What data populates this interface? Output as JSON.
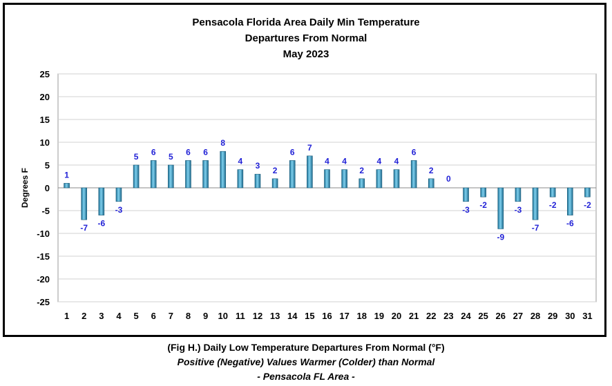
{
  "chart_data": {
    "type": "bar",
    "title": "Pensacola Florida Area Daily Min Temperature",
    "subtitle_lines": [
      "Departures From Normal",
      "May 2023"
    ],
    "ylabel": "Degrees F",
    "xlabel": "",
    "ylim": [
      -25,
      25
    ],
    "yticks": [
      25,
      20,
      15,
      10,
      5,
      0,
      -5,
      -10,
      -15,
      -20,
      -25
    ],
    "grid": true,
    "categories": [
      "1",
      "2",
      "3",
      "4",
      "5",
      "6",
      "7",
      "8",
      "9",
      "10",
      "11",
      "12",
      "13",
      "14",
      "15",
      "16",
      "17",
      "18",
      "19",
      "20",
      "21",
      "22",
      "23",
      "24",
      "25",
      "26",
      "27",
      "28",
      "29",
      "30",
      "31"
    ],
    "values": [
      1,
      -7,
      -6,
      -3,
      5,
      6,
      5,
      6,
      6,
      8,
      4,
      3,
      2,
      6,
      7,
      4,
      4,
      2,
      4,
      4,
      6,
      2,
      0,
      -3,
      -2,
      -9,
      -3,
      -7,
      -2,
      -6,
      -2
    ],
    "bar_color": "#4aa3c8",
    "label_color": "#1f1fd6"
  },
  "captions": {
    "line1": "(Fig H.) Daily Low Temperature Departures From Normal (°F)",
    "line2": "Positive (Negative) Values Warmer (Colder) than Normal",
    "line3": "- Pensacola FL Area -"
  }
}
